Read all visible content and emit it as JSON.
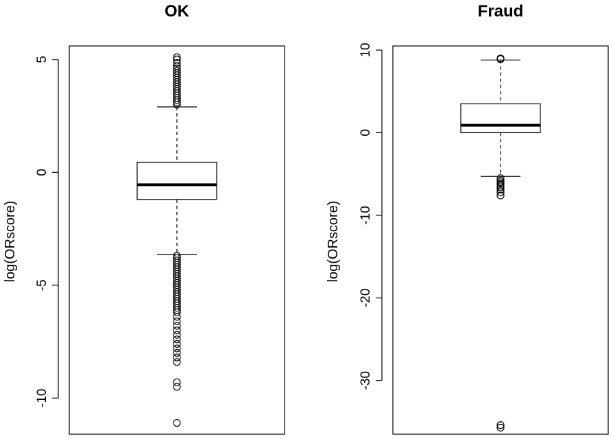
{
  "chart_data": [
    {
      "type": "boxplot",
      "title": "OK",
      "ylabel": "log(ORscore)",
      "ylim": [
        -11.6,
        5.6
      ],
      "yticks": [
        -10,
        -5,
        0,
        5
      ],
      "ytick_labels": [
        "-10",
        "-5",
        "0",
        "5"
      ],
      "box": {
        "whisker_low": -3.65,
        "q1": -1.2,
        "median": -0.55,
        "q3": 0.45,
        "whisker_high": 2.9
      },
      "outliers": [
        5.1,
        5.0,
        4.85,
        4.7,
        4.6,
        4.5,
        4.4,
        4.3,
        4.2,
        4.1,
        4.0,
        3.9,
        3.8,
        3.7,
        3.6,
        3.5,
        3.4,
        3.3,
        3.2,
        3.1,
        3.0,
        -3.7,
        -3.8,
        -3.9,
        -4.0,
        -4.1,
        -4.2,
        -4.3,
        -4.4,
        -4.5,
        -4.6,
        -4.7,
        -4.8,
        -4.9,
        -5.0,
        -5.1,
        -5.2,
        -5.3,
        -5.4,
        -5.5,
        -5.6,
        -5.7,
        -5.8,
        -5.9,
        -6.0,
        -6.1,
        -6.2,
        -6.4,
        -6.6,
        -6.8,
        -7.0,
        -7.2,
        -7.4,
        -7.6,
        -7.8,
        -8.0,
        -8.2,
        -8.4,
        -9.3,
        -9.5,
        -11.1
      ]
    },
    {
      "type": "boxplot",
      "title": "Fraud",
      "ylabel": "log(ORscore)",
      "ylim": [
        -36.5,
        10.5
      ],
      "yticks": [
        -30,
        -20,
        -10,
        0,
        10
      ],
      "ytick_labels": [
        "-30",
        "-20",
        "-10",
        "0",
        "10"
      ],
      "box": {
        "whisker_low": -5.3,
        "q1": 0.0,
        "median": 0.9,
        "q3": 3.5,
        "whisker_high": 8.8
      },
      "outliers": [
        9.0,
        8.9,
        -5.5,
        -5.8,
        -6.0,
        -6.2,
        -6.4,
        -6.6,
        -6.9,
        -7.2,
        -7.6,
        -35.4,
        -35.7
      ]
    }
  ]
}
